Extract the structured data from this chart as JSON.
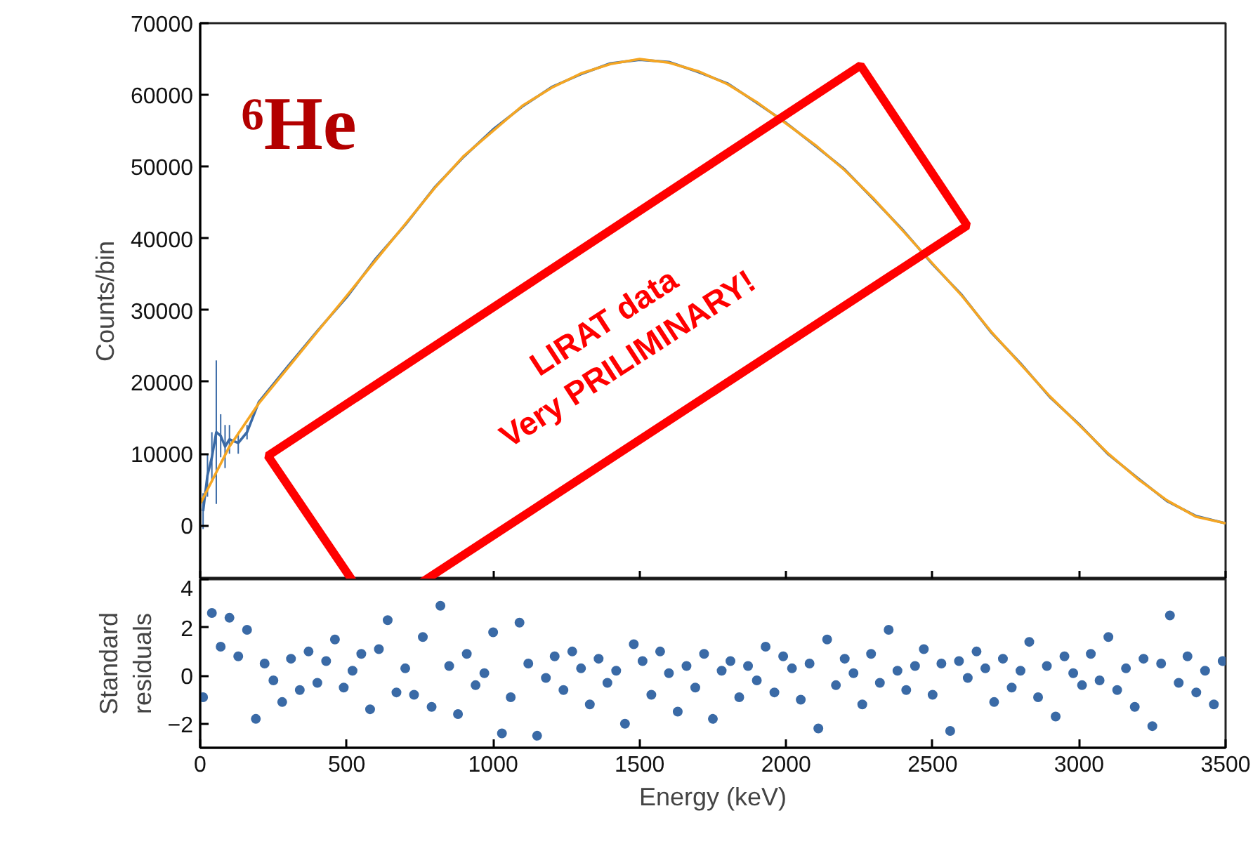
{
  "chart_data": [
    {
      "type": "line",
      "ylabel": "Counts/bin",
      "xlim": [
        0,
        3500
      ],
      "xticks": [
        0,
        500,
        1000,
        1500,
        2000,
        2500,
        3000,
        3500
      ],
      "ylim": [
        -7500,
        70000
      ],
      "yticks": [
        0,
        10000,
        20000,
        30000,
        40000,
        50000,
        60000,
        70000
      ],
      "tick_labels": "y",
      "grid": false,
      "annotations": [
        "⁶He",
        "LIRAT data\nVery PRILIMINARY!"
      ],
      "series": [
        {
          "color": "#3a6aa6",
          "x": [
            10,
            25,
            40,
            55,
            70,
            85,
            100,
            130,
            160,
            200,
            300,
            400,
            500,
            600,
            700,
            800,
            900,
            1000,
            1100,
            1200,
            1300,
            1400,
            1500,
            1600,
            1700,
            1800,
            1900,
            2000,
            2100,
            2200,
            2300,
            2400,
            2500,
            2600,
            2700,
            2800,
            2900,
            3000,
            3100,
            3200,
            3300,
            3400,
            3500
          ],
          "values": [
            2000,
            7000,
            9500,
            13000,
            12500,
            11000,
            12000,
            11500,
            13000,
            17200,
            22200,
            27100,
            31800,
            37200,
            41900,
            47100,
            51400,
            55200,
            58400,
            61100,
            62900,
            64400,
            64900,
            64600,
            63200,
            61600,
            58900,
            56100,
            52900,
            49600,
            45400,
            41100,
            36400,
            32100,
            26900,
            22600,
            17900,
            14100,
            9900,
            6600,
            3400,
            1300,
            300
          ],
          "errors": [
            2500,
            3000,
            3500,
            10000,
            3000,
            3000,
            2000,
            1500,
            1000,
            null,
            null,
            null,
            null,
            null,
            null,
            null,
            null,
            null,
            null,
            null,
            null,
            null,
            null,
            null,
            null,
            null,
            null,
            null,
            null,
            null,
            null,
            null,
            null,
            null,
            null,
            null,
            null,
            null,
            null,
            null,
            null,
            null,
            null
          ]
        },
        {
          "color": "#f5a623",
          "x": [
            0,
            100,
            200,
            300,
            400,
            500,
            600,
            700,
            800,
            900,
            1000,
            1100,
            1200,
            1300,
            1400,
            1500,
            1600,
            1700,
            1800,
            1900,
            2000,
            2100,
            2200,
            2300,
            2400,
            2500,
            2600,
            2700,
            2800,
            2900,
            3000,
            3100,
            3200,
            3300,
            3400,
            3500
          ],
          "values": [
            3000,
            11000,
            17000,
            22000,
            27000,
            32000,
            37000,
            42000,
            47000,
            51500,
            55000,
            58500,
            61000,
            63000,
            64300,
            65000,
            64500,
            63300,
            61500,
            59000,
            56000,
            53000,
            49500,
            45500,
            41000,
            36500,
            32000,
            27000,
            22500,
            18000,
            14000,
            10000,
            6500,
            3500,
            1200,
            300
          ]
        }
      ]
    },
    {
      "type": "scatter",
      "xlabel": "Energy (keV)",
      "ylabel": "Standard residuals",
      "xlim": [
        0,
        3500
      ],
      "xticks": [
        0,
        500,
        1000,
        1500,
        2000,
        2500,
        3000,
        3500
      ],
      "ylim": [
        -3,
        4
      ],
      "yticks": [
        -2,
        0,
        2,
        4
      ],
      "grid": false,
      "marker": "circle",
      "series": [
        {
          "color": "#3a6aa6",
          "x": [
            10,
            40,
            70,
            100,
            130,
            160,
            190,
            220,
            250,
            280,
            310,
            340,
            370,
            400,
            430,
            460,
            490,
            520,
            550,
            580,
            610,
            640,
            670,
            700,
            730,
            760,
            790,
            820,
            850,
            880,
            910,
            940,
            970,
            1000,
            1030,
            1060,
            1090,
            1120,
            1150,
            1180,
            1210,
            1240,
            1270,
            1300,
            1330,
            1360,
            1390,
            1420,
            1450,
            1480,
            1510,
            1540,
            1570,
            1600,
            1630,
            1660,
            1690,
            1720,
            1750,
            1780,
            1810,
            1840,
            1870,
            1900,
            1930,
            1960,
            1990,
            2020,
            2050,
            2080,
            2110,
            2140,
            2170,
            2200,
            2230,
            2260,
            2290,
            2320,
            2350,
            2380,
            2410,
            2440,
            2470,
            2500,
            2530,
            2560,
            2590,
            2620,
            2650,
            2680,
            2710,
            2740,
            2770,
            2800,
            2830,
            2860,
            2890,
            2920,
            2950,
            2980,
            3010,
            3040,
            3070,
            3100,
            3130,
            3160,
            3190,
            3220,
            3250,
            3280,
            3310,
            3340,
            3370,
            3400,
            3430,
            3460,
            3490
          ],
          "values": [
            -0.9,
            2.6,
            1.2,
            2.4,
            0.8,
            1.9,
            -1.8,
            0.5,
            -0.2,
            -1.1,
            0.7,
            -0.6,
            1.0,
            -0.3,
            0.6,
            1.5,
            -0.5,
            0.2,
            0.9,
            -1.4,
            1.1,
            2.3,
            -0.7,
            0.3,
            -0.8,
            1.6,
            -1.3,
            2.9,
            0.4,
            -1.6,
            0.9,
            -0.4,
            0.1,
            1.8,
            -2.4,
            -0.9,
            2.2,
            0.5,
            -2.5,
            -0.1,
            0.8,
            -0.6,
            1.0,
            0.3,
            -1.2,
            0.7,
            -0.3,
            0.2,
            -2.0,
            1.3,
            0.6,
            -0.8,
            1.0,
            0.1,
            -1.5,
            0.4,
            -0.5,
            0.9,
            -1.8,
            0.2,
            0.6,
            -0.9,
            0.4,
            -0.2,
            1.2,
            -0.7,
            0.8,
            0.3,
            -1.0,
            0.5,
            -2.2,
            1.5,
            -0.4,
            0.7,
            0.1,
            -1.2,
            0.9,
            -0.3,
            1.9,
            0.2,
            -0.6,
            0.4,
            1.1,
            -0.8,
            0.5,
            -2.3,
            0.6,
            -0.1,
            1.0,
            0.3,
            -1.1,
            0.7,
            -0.5,
            0.2,
            1.4,
            -0.9,
            0.4,
            -1.7,
            0.8,
            0.1,
            -0.4,
            0.9,
            -0.2,
            1.6,
            -0.6,
            0.3,
            -1.3,
            0.7,
            -2.1,
            0.5,
            2.5,
            -0.3,
            0.8,
            -0.7,
            0.2,
            -1.2,
            0.6
          ]
        }
      ]
    }
  ]
}
